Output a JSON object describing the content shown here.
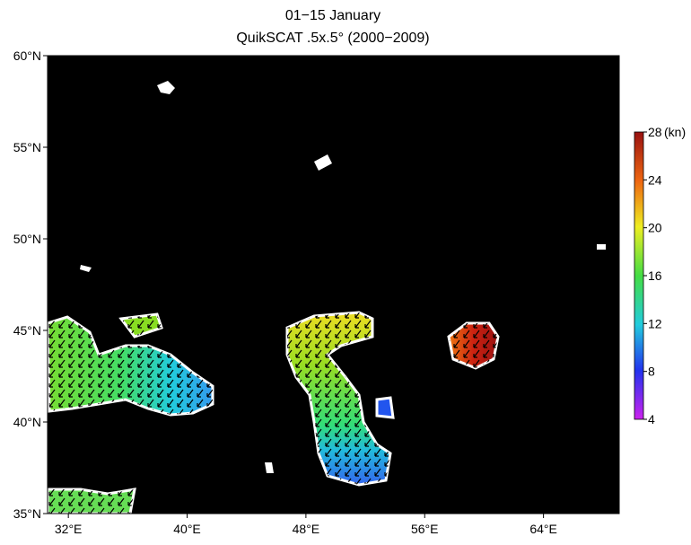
{
  "map": {
    "title": [
      "01−15 January",
      "QuikSCAT .5x.5° (2000−2009)"
    ],
    "lon_range": [
      30.6,
      69.1
    ],
    "lat_range": [
      35,
      60
    ],
    "lon_ticks": [
      {
        "value": 32,
        "label": "32°E"
      },
      {
        "value": 40,
        "label": "40°E"
      },
      {
        "value": 48,
        "label": "48°E"
      },
      {
        "value": 56,
        "label": "56°E"
      },
      {
        "value": 64,
        "label": "64°E"
      }
    ],
    "lat_ticks": [
      {
        "value": 35,
        "label": "35°N"
      },
      {
        "value": 40,
        "label": "40°N"
      },
      {
        "value": 45,
        "label": "45°N"
      },
      {
        "value": 50,
        "label": "50°N"
      },
      {
        "value": 55,
        "label": "55°N"
      },
      {
        "value": 60,
        "label": "60°N"
      }
    ],
    "colorbar": {
      "range": [
        4,
        28
      ],
      "ticks": [
        4,
        8,
        12,
        16,
        20,
        24,
        28
      ],
      "unit": "(kn)"
    }
  }
}
